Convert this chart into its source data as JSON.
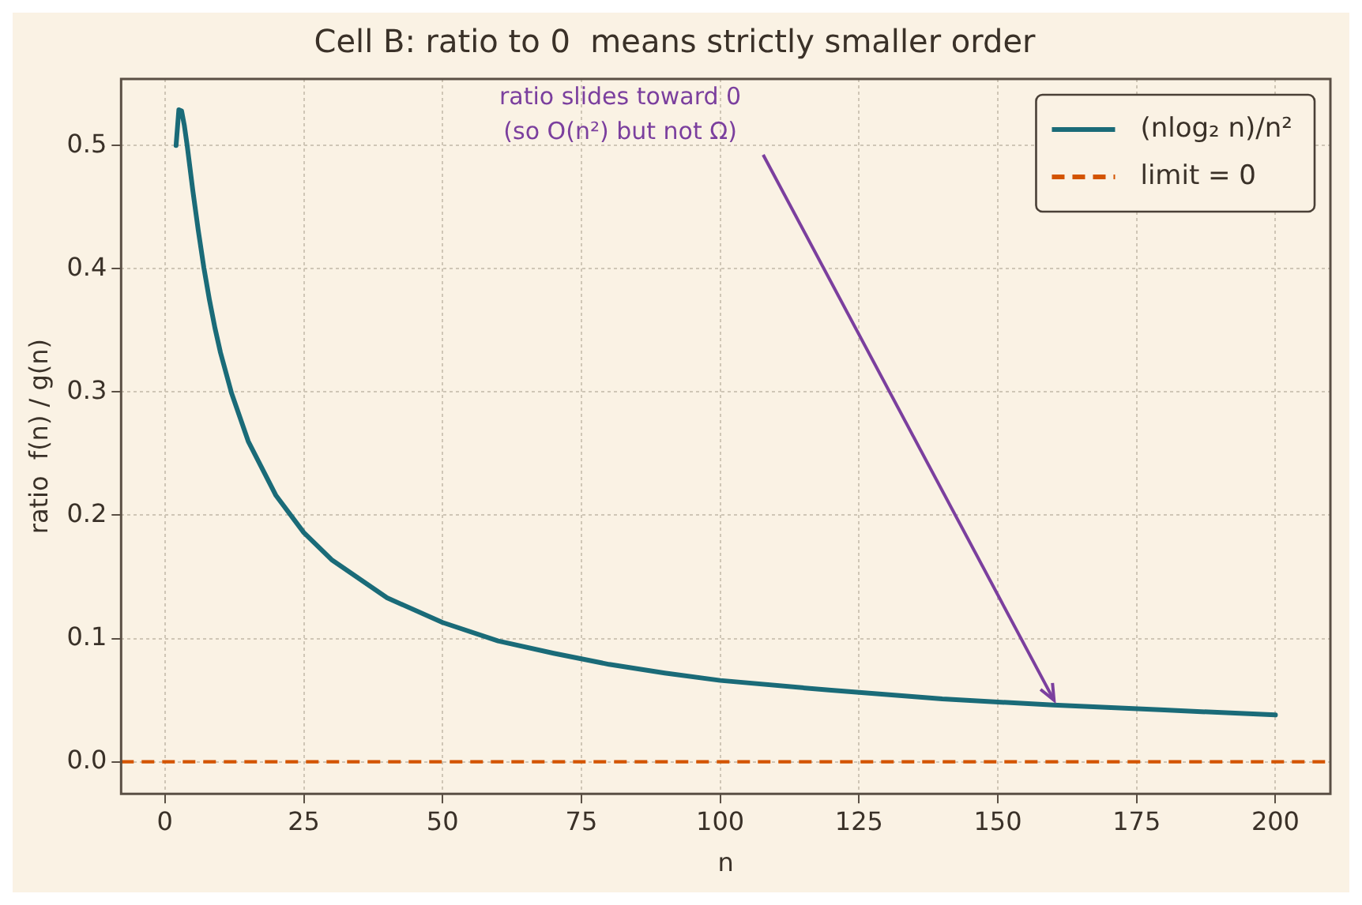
{
  "chart_data": {
    "type": "line",
    "title": "Cell B: ratio to 0  means strictly smaller order",
    "xlabel": "n",
    "ylabel": "ratio  f(n) / g(n)",
    "x": [
      2,
      2.5,
      3,
      3.5,
      4,
      5,
      6,
      7,
      8,
      9,
      10,
      12,
      15,
      20,
      25,
      30,
      40,
      50,
      60,
      70,
      80,
      90,
      100,
      120,
      140,
      160,
      180,
      200
    ],
    "series": [
      {
        "name": "(nlog₂ n)/n²",
        "color": "#1a6b78",
        "values": [
          0.5,
          0.529,
          0.528,
          0.516,
          0.5,
          0.464,
          0.431,
          0.401,
          0.375,
          0.352,
          0.332,
          0.299,
          0.26,
          0.216,
          0.186,
          0.164,
          0.133,
          0.113,
          0.098,
          0.088,
          0.079,
          0.072,
          0.066,
          0.058,
          0.051,
          0.046,
          0.042,
          0.038
        ]
      }
    ],
    "ref_lines": [
      {
        "axis": "y",
        "value": 0,
        "label": "limit = 0",
        "color": "#d35400",
        "line_style": "dashed"
      }
    ],
    "annotations": [
      {
        "text": "ratio slides toward 0\n(so O(n²) but not Ω)",
        "x": 160,
        "y": 0.046
      }
    ],
    "xlim": [
      -7.9,
      209.9
    ],
    "ylim": [
      -0.026,
      0.554
    ],
    "xticks": [
      0,
      25,
      50,
      75,
      100,
      125,
      150,
      175,
      200
    ],
    "yticks": [
      {
        "value": 0,
        "label": "0.0"
      },
      0.1,
      0.2,
      0.3,
      0.4,
      0.5
    ],
    "grid": true,
    "legend": "top right",
    "marker": "none",
    "line_style": "solid"
  }
}
